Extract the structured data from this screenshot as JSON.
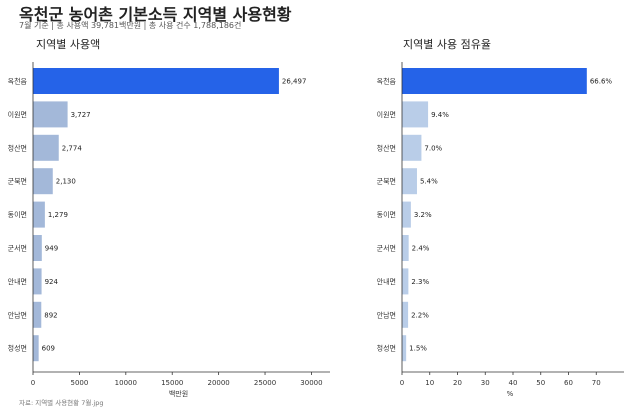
{
  "header": {
    "title": "옥천군 농어촌 기본소득 지역별 사용현황",
    "subtitle": "7월 기준 | 총 사용액 39,781백만원 | 총 사용 건수 1,788,186건"
  },
  "source": "자료: 지역별 사용현황 7월.jpg",
  "colors": {
    "highlight": "#2563e8",
    "left_bar": "#a3b8d9",
    "right_bar": "#b9cde8",
    "axis": "#333333"
  },
  "chart_data": [
    {
      "type": "bar",
      "orientation": "horizontal",
      "title": "지역별 사용액",
      "xlabel": "백만원",
      "ylabel": "",
      "xlim": [
        0,
        32000
      ],
      "xticks": [
        0,
        5000,
        10000,
        15000,
        20000,
        25000,
        30000
      ],
      "tick_labels": [
        "0",
        "5000",
        "10000",
        "15000",
        "20000",
        "25000",
        "30000"
      ],
      "grid": false,
      "categories": [
        "옥천읍",
        "이원면",
        "청산면",
        "군북면",
        "동이면",
        "군서면",
        "안내면",
        "안남면",
        "청성면"
      ],
      "values": [
        26497,
        3727,
        2774,
        2130,
        1279,
        949,
        924,
        892,
        609
      ],
      "value_labels": [
        "26,497",
        "3,727",
        "2,774",
        "2,130",
        "1,279",
        "949",
        "924",
        "892",
        "609"
      ]
    },
    {
      "type": "bar",
      "orientation": "horizontal",
      "title": "지역별 사용 점유율",
      "xlabel": "%",
      "ylabel": "",
      "xlim": [
        0,
        80
      ],
      "xticks": [
        0,
        10,
        20,
        30,
        40,
        50,
        60,
        70
      ],
      "tick_labels": [
        "0",
        "10",
        "20",
        "30",
        "40",
        "50",
        "60",
        "70"
      ],
      "grid": false,
      "categories": [
        "옥천읍",
        "이원면",
        "청산면",
        "군북면",
        "동이면",
        "군서면",
        "안내면",
        "안남면",
        "청성면"
      ],
      "values": [
        66.6,
        9.4,
        7.0,
        5.4,
        3.2,
        2.4,
        2.3,
        2.2,
        1.5
      ],
      "value_labels": [
        "66.6%",
        "9.4%",
        "7.0%",
        "5.4%",
        "3.2%",
        "2.4%",
        "2.3%",
        "2.2%",
        "1.5%"
      ]
    }
  ]
}
